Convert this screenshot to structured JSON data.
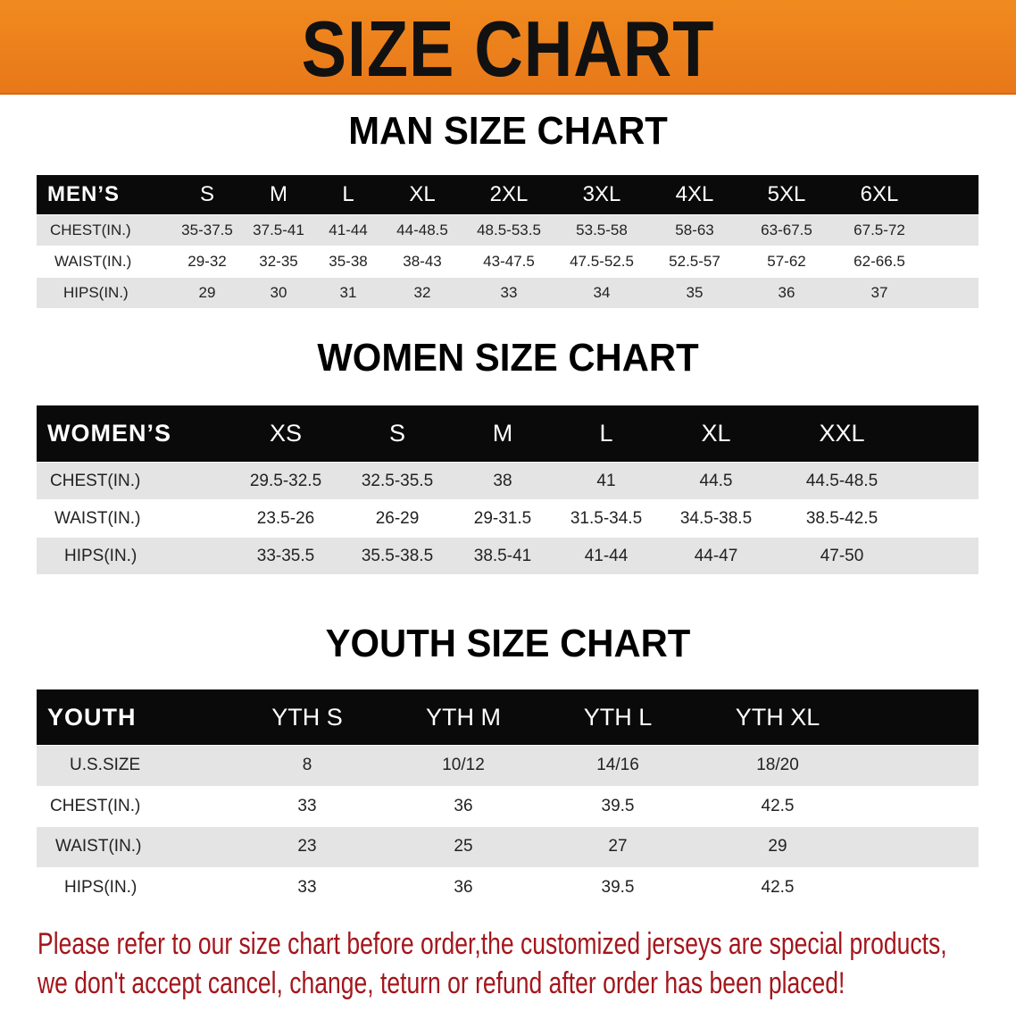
{
  "banner_title": "SIZE CHART",
  "men": {
    "title": "MAN SIZE CHART",
    "header": [
      "MEN’S",
      "S",
      "M",
      "L",
      "XL",
      "2XL",
      "3XL",
      "4XL",
      "5XL",
      "6XL"
    ],
    "rows": [
      [
        "CHEST(IN.)",
        "35-37.5",
        "37.5-41",
        "41-44",
        "44-48.5",
        "48.5-53.5",
        "53.5-58",
        "58-63",
        "63-67.5",
        "67.5-72"
      ],
      [
        "WAIST(IN.)",
        "29-32",
        "32-35",
        "35-38",
        "38-43",
        "43-47.5",
        "47.5-52.5",
        "52.5-57",
        "57-62",
        "62-66.5"
      ],
      [
        "HIPS(IN.)",
        "29",
        "30",
        "31",
        "32",
        "33",
        "34",
        "35",
        "36",
        "37"
      ]
    ]
  },
  "women": {
    "title": "WOMEN SIZE CHART",
    "header": [
      "WOMEN’S",
      "XS",
      "S",
      "M",
      "L",
      "XL",
      "XXL"
    ],
    "rows": [
      [
        "CHEST(IN.)",
        "29.5-32.5",
        "32.5-35.5",
        "38",
        "41",
        "44.5",
        "44.5-48.5"
      ],
      [
        "WAIST(IN.)",
        "23.5-26",
        "26-29",
        "29-31.5",
        "31.5-34.5",
        "34.5-38.5",
        "38.5-42.5"
      ],
      [
        "HIPS(IN.)",
        "33-35.5",
        "35.5-38.5",
        "38.5-41",
        "41-44",
        "44-47",
        "47-50"
      ]
    ]
  },
  "youth": {
    "title": "YOUTH SIZE CHART",
    "header": [
      "YOUTH",
      "YTH S",
      "YTH M",
      "YTH L",
      "YTH XL"
    ],
    "rows": [
      [
        "U.S.SIZE",
        "8",
        "10/12",
        "14/16",
        "18/20"
      ],
      [
        "CHEST(IN.)",
        "33",
        "36",
        "39.5",
        "42.5"
      ],
      [
        "WAIST(IN.)",
        "23",
        "25",
        "27",
        "29"
      ],
      [
        "HIPS(IN.)",
        "33",
        "36",
        "39.5",
        "42.5"
      ]
    ]
  },
  "notice": [
    "Please refer to our size chart before order,the customized jerseys are special products,",
    "we don't accept cancel, change, teturn or refund after order has been placed!"
  ],
  "colors": {
    "banner": "#ef861d",
    "notice": "#a3161c",
    "header_row": "#0a0a0a",
    "stripe": "#e4e4e4"
  }
}
